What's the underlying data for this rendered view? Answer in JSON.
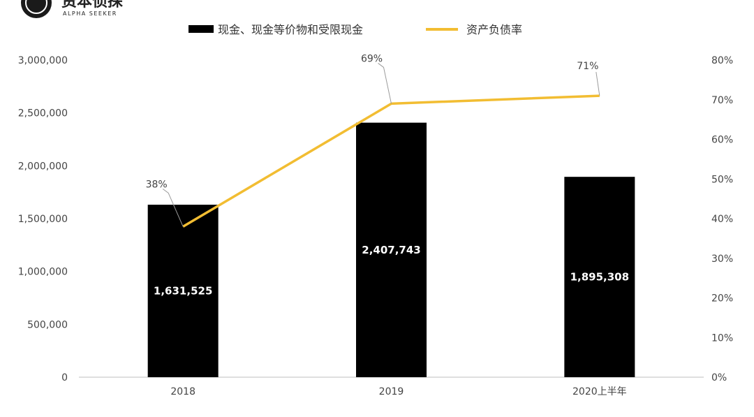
{
  "brand": {
    "name_cn": "资本侦探",
    "name_en": "ALPHA SEEKER"
  },
  "colors": {
    "bar": "#000000",
    "line": "#F2BD32",
    "axis": "#BFBFBF",
    "text": "#444444"
  },
  "chart_data": {
    "type": "bar",
    "categories": [
      "2018",
      "2019",
      "2020上半年"
    ],
    "series": [
      {
        "name": "现金、现金等价物和受限现金",
        "type": "bar",
        "axis": "left",
        "values": [
          1631525,
          2407743,
          1895308
        ],
        "labels": [
          "1,631,525",
          "2,407,743",
          "1,895,308"
        ]
      },
      {
        "name": "资产负债率",
        "type": "line",
        "axis": "right",
        "values": [
          0.38,
          0.69,
          0.71
        ],
        "labels": [
          "38%",
          "69%",
          "71%"
        ]
      }
    ],
    "y_left": {
      "lim": [
        0,
        3000000
      ],
      "ticks": [
        "0",
        "500,000",
        "1,000,000",
        "1,500,000",
        "2,000,000",
        "2,500,000",
        "3,000,000"
      ]
    },
    "y_right": {
      "lim": [
        0,
        0.8
      ],
      "ticks": [
        "0%",
        "10%",
        "20%",
        "30%",
        "40%",
        "50%",
        "60%",
        "70%",
        "80%"
      ]
    },
    "legend_position": "top",
    "grid": false
  }
}
